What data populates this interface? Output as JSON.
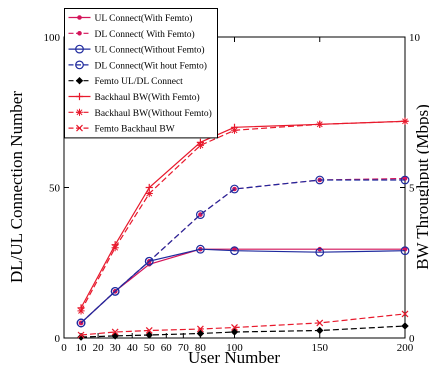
{
  "chart_data": {
    "type": "line",
    "xlabel": "User Number",
    "ylabel": "DL/UL Connection Number",
    "y2label": "BW Throughput (Mbps)",
    "x": [
      10,
      30,
      50,
      80,
      100,
      150,
      200
    ],
    "xlim": [
      0,
      200
    ],
    "ylim": [
      0,
      100
    ],
    "y2lim": [
      0,
      10
    ],
    "xticks": [
      0,
      10,
      20,
      30,
      40,
      50,
      60,
      70,
      80,
      100,
      150,
      200
    ],
    "yticks": [
      0,
      50,
      100
    ],
    "y2ticks": [
      0,
      5,
      10
    ],
    "grid": false,
    "legend_position": "top-left",
    "series": [
      {
        "name": "UL Connect(With Femto)",
        "axis": "left",
        "color": "#d4145a",
        "line": "solid",
        "marker": "dot",
        "values": [
          5,
          15.5,
          24.5,
          29.5,
          29.5,
          29.5,
          29.5
        ]
      },
      {
        "name": "DL Connect( With Femto)",
        "axis": "left",
        "color": "#d4145a",
        "line": "dashed",
        "marker": "dot",
        "values": [
          5,
          15.5,
          25.5,
          41,
          49.5,
          52.5,
          53
        ]
      },
      {
        "name": "UL Connect(Without Femto)",
        "axis": "left",
        "color": "#1f2a9e",
        "line": "solid",
        "marker": "circle",
        "values": [
          5,
          15.5,
          25.5,
          29.5,
          29,
          28.5,
          29
        ]
      },
      {
        "name": "DL Connect(Wit hout Femto)",
        "axis": "left",
        "color": "#1f2a9e",
        "line": "dashed",
        "marker": "circle",
        "values": [
          5,
          15.5,
          25.5,
          41,
          49.5,
          52.5,
          52.5
        ]
      },
      {
        "name": "Femto UL/DL Connect",
        "axis": "left",
        "color": "#000000",
        "line": "dashed",
        "marker": "diamond",
        "values": [
          0.3,
          0.7,
          1,
          1.5,
          2,
          2.5,
          4
        ]
      },
      {
        "name": "Backhaul BW(With Femto)",
        "axis": "right",
        "color": "#e8192c",
        "line": "solid",
        "marker": "plus",
        "values": [
          1,
          3.1,
          5,
          6.5,
          7,
          7.1,
          7.2
        ]
      },
      {
        "name": "Backhaul BW(Without Femto)",
        "axis": "right",
        "color": "#e8192c",
        "line": "dashed",
        "marker": "star",
        "values": [
          0.9,
          3,
          4.8,
          6.4,
          6.9,
          7.1,
          7.2
        ]
      },
      {
        "name": "Femto Backhaul BW",
        "axis": "right",
        "color": "#e8192c",
        "line": "dashed",
        "marker": "cross",
        "values": [
          0.1,
          0.2,
          0.25,
          0.3,
          0.35,
          0.5,
          0.8
        ]
      }
    ]
  }
}
